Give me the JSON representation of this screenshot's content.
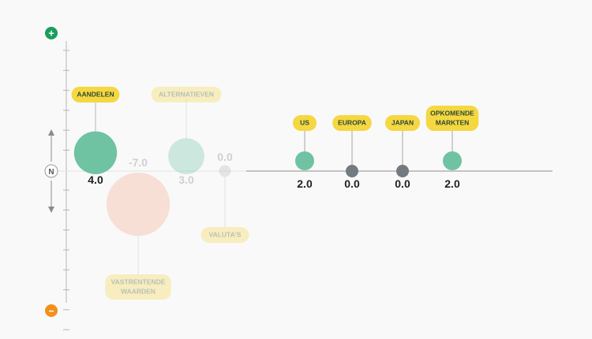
{
  "chart_data": {
    "type": "bubble",
    "axis": {
      "top_symbol": "+",
      "bottom_symbol": "−",
      "neutral_label": "N"
    },
    "asset_classes": [
      {
        "label": "AANDELEN",
        "value": 4.0,
        "value_label": "4.0",
        "faded": false,
        "label_position": "above"
      },
      {
        "label": "VASTRENTENDE WAARDEN",
        "value": -7.0,
        "value_label": "-7.0",
        "faded": true,
        "label_position": "below"
      },
      {
        "label": "ALTERNATIEVEN",
        "value": 3.0,
        "value_label": "3.0",
        "faded": true,
        "label_position": "above"
      },
      {
        "label": "VALUTA'S",
        "value": 0.0,
        "value_label": "0.0",
        "faded": true,
        "label_position": "below"
      }
    ],
    "regions": [
      {
        "label": "US",
        "value": 2.0,
        "value_label": "2.0"
      },
      {
        "label": "EUROPA",
        "value": 0.0,
        "value_label": "0.0"
      },
      {
        "label": "JAPAN",
        "value": 0.0,
        "value_label": "0.0"
      },
      {
        "label": "OPKOMENDE MARKTEN",
        "value": 2.0,
        "value_label": "2.0"
      }
    ],
    "colors": {
      "positive": "#6fc3a2",
      "negative": "#f4a98a",
      "neutral": "#737a80",
      "label_bg": "#f5d742",
      "label_text": "#2d4a30",
      "plus_icon": "#1a9e5c",
      "minus_icon": "#f3901c",
      "axis": "#b5b5b5"
    }
  }
}
